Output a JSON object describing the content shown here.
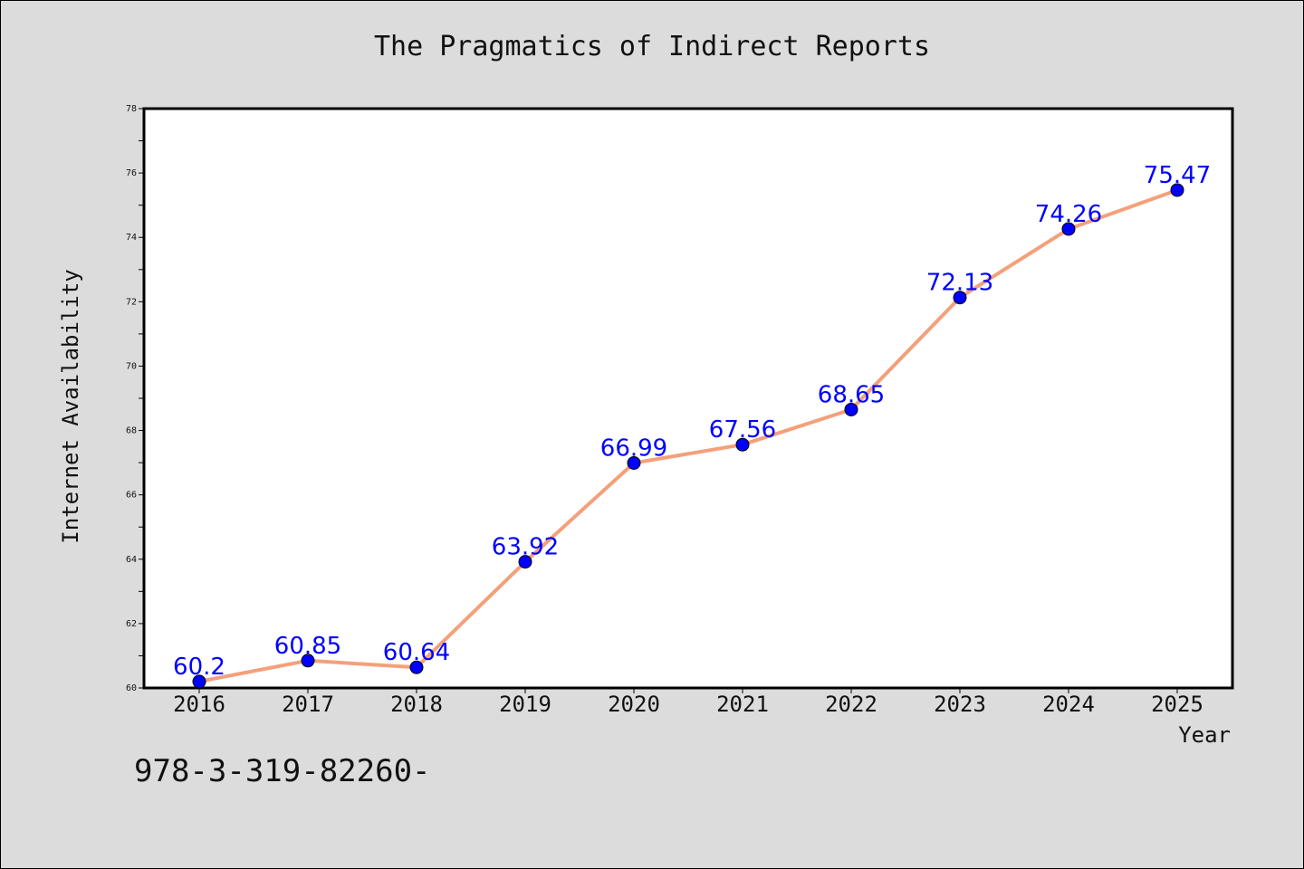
{
  "chart_data": {
    "type": "line",
    "title": "The Pragmatics of Indirect Reports",
    "xlabel": "Year",
    "ylabel": "Internet Availability",
    "categories": [
      "2016",
      "2017",
      "2018",
      "2019",
      "2020",
      "2021",
      "2022",
      "2023",
      "2024",
      "2025"
    ],
    "series": [
      {
        "values": [
          60.2,
          60.85,
          60.64,
          63.92,
          66.99,
          67.56,
          68.65,
          72.13,
          74.26,
          75.47
        ],
        "labels": [
          "60.2",
          "60.85",
          "60.64",
          "63.92",
          "66.99",
          "67.56",
          "68.65",
          "72.13",
          "74.26",
          "75.47"
        ],
        "line_color": "#f4a07a",
        "marker_color": "#0000ff",
        "label_color": "#0000ff"
      }
    ],
    "ylim": [
      60,
      78
    ],
    "yticks": [
      "60",
      "62",
      "64",
      "66",
      "68",
      "70",
      "72",
      "74",
      "76",
      "78"
    ],
    "grid": false,
    "legend": "none"
  },
  "footer": {
    "code": "978-3-319-82260-"
  },
  "colors": {
    "background": "#dcdcdc",
    "plot_background": "#ffffff"
  }
}
